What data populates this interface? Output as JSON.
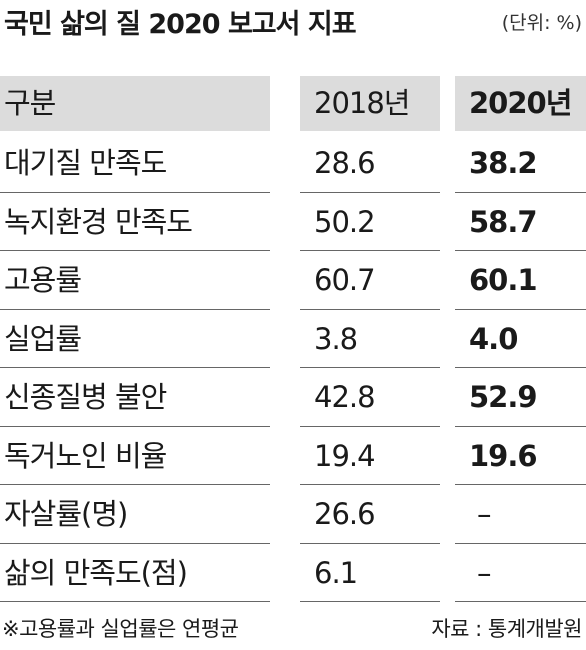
{
  "header": {
    "title": "국민 삶의 질 2020 보고서 지표",
    "unit": "(단위: %)"
  },
  "table": {
    "columns": [
      "구분",
      "2018년",
      "2020년"
    ],
    "rows": [
      [
        "대기질 만족도",
        "28.6",
        "38.2"
      ],
      [
        "녹지환경 만족도",
        "50.2",
        "58.7"
      ],
      [
        "고용률",
        "60.7",
        "60.1"
      ],
      [
        "실업률",
        "3.8",
        "4.0"
      ],
      [
        "신종질병 불안",
        "42.8",
        "52.9"
      ],
      [
        "독거노인 비율",
        "19.4",
        "19.6"
      ],
      [
        "자살률(명)",
        "26.6",
        "–"
      ],
      [
        "삶의 만족도(점)",
        "6.1",
        "–"
      ]
    ]
  },
  "footer": {
    "note": "※고용률과 실업률은 연평균",
    "source": "자료 : 통계개발원"
  }
}
